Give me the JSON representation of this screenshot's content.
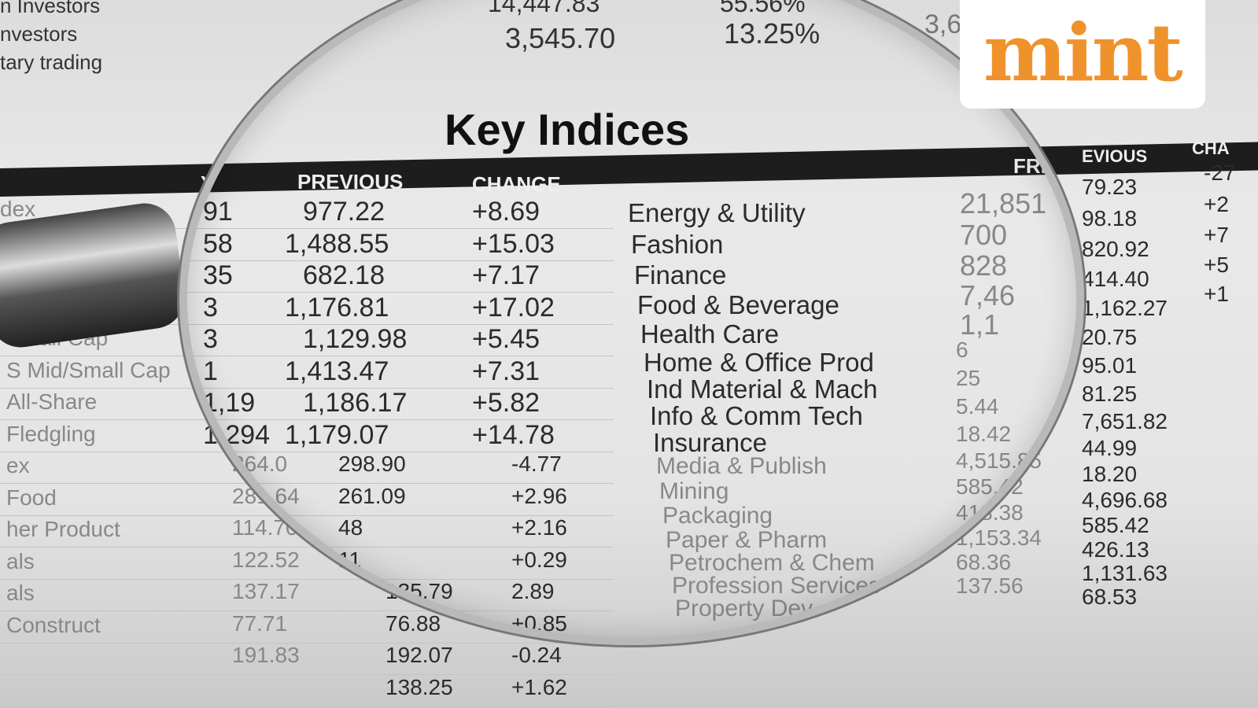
{
  "top_rows": [
    {
      "label": "n Investors",
      "value": "14,447.83",
      "pct": "55.56%"
    },
    {
      "label": "nvestors",
      "value": "3,545.70",
      "pct": "13.25%",
      "extra": "3,6"
    },
    {
      "label": "tary trading"
    }
  ],
  "title": "Key Indices",
  "headers": {
    "first": "Y",
    "previous": "PREVIOUS",
    "change": "CHANGE",
    "fri": "FRI",
    "previous_right": "EVIOUS",
    "change_right": "CHA"
  },
  "left_table": [
    {
      "label": "dex",
      "today": "91",
      "previous": "977.22",
      "change": "+8.69"
    },
    {
      "label": "",
      "today": "58",
      "previous": "1,488.55",
      "change": "+15.03"
    },
    {
      "label": "",
      "today": "35",
      "previous": "682.18",
      "change": "+7.17"
    },
    {
      "label": "",
      "today": "3",
      "previous": "1,176.81",
      "change": "+17.02"
    },
    {
      "label": "Small Cap",
      "today": "3",
      "previous": "1,129.98",
      "change": "+5.45"
    },
    {
      "label": "S Mid/Small Cap",
      "today": "1",
      "previous": "1,413.47",
      "change": "+7.31"
    },
    {
      "label": "All-Share",
      "today": "1,19",
      "previous": "1,186.17",
      "change": "+5.82"
    },
    {
      "label": "Fledgling",
      "today": "1,294",
      "previous": "1,179.07",
      "change": "+14.78"
    },
    {
      "label": "ex",
      "today": "264.0",
      "previous": "298.90",
      "change": "-4.77"
    },
    {
      "label": "Food",
      "today": "281.64",
      "previous": "261.09",
      "change": "+2.96"
    },
    {
      "label": "her Product",
      "today": "114.70",
      "previous": "48",
      "change": "+2.16"
    },
    {
      "label": "als",
      "today": "122.52",
      "previous": "11",
      "change": "+0.29"
    },
    {
      "label": "als",
      "today": "137.17",
      "previous": "135.79",
      "change": "2.89"
    },
    {
      "label": "Construct",
      "today": "77.71",
      "previous": "76.88",
      "change": "+0.85"
    },
    {
      "label": "",
      "today": "191.83",
      "previous": "192.07",
      "change": "-0.24"
    },
    {
      "label": "",
      "today": "",
      "previous": "138.25",
      "change": "+1.62"
    }
  ],
  "right_table": [
    {
      "sector": "Energy & Utility",
      "fri": "21,851",
      "previous": "79.23",
      "change": "-27"
    },
    {
      "sector": "Fashion",
      "fri": "700",
      "previous": "98.18",
      "change": "+2"
    },
    {
      "sector": "Finance",
      "fri": "828",
      "previous": "820.92",
      "change": "+7"
    },
    {
      "sector": "Food & Beverage",
      "fri": "7,46",
      "previous": "414.40",
      "change": "+5"
    },
    {
      "sector": "Health Care",
      "fri": "1,1",
      "previous": "1,162.27",
      "change": "+1"
    },
    {
      "sector": "Home & Office Prod",
      "fri": "6",
      "previous": "20.75",
      "change": ""
    },
    {
      "sector": "Ind Material & Mach",
      "fri": "25",
      "previous": "95.01",
      "change": ""
    },
    {
      "sector": "Info & Comm Tech",
      "fri": "5.44",
      "previous": "81.25",
      "change": ""
    },
    {
      "sector": "Insurance",
      "fri": "18.42",
      "previous": "7,651.82",
      "change": ""
    },
    {
      "sector": "Media & Publish",
      "fri": "4,515.85",
      "previous": "44.99",
      "change": ""
    },
    {
      "sector": "Mining",
      "fri": "585.42",
      "previous": "18.20",
      "change": ""
    },
    {
      "sector": "Packaging",
      "fri": "418.38",
      "previous": "4,696.68",
      "change": ""
    },
    {
      "sector": "Paper & Pharm",
      "fri": "1,153.34",
      "previous": "585.42",
      "change": ""
    },
    {
      "sector": "Petrochem & Chem",
      "fri": "68.36",
      "previous": "426.13",
      "change": ""
    },
    {
      "sector": "Profession Services",
      "fri": "137.56",
      "previous": "1,131.63",
      "change": ""
    },
    {
      "sector": "Property Dev",
      "fri": "",
      "previous": "68.53",
      "change": ""
    }
  ],
  "logo": {
    "text": "mint",
    "color": "#f0922b"
  }
}
